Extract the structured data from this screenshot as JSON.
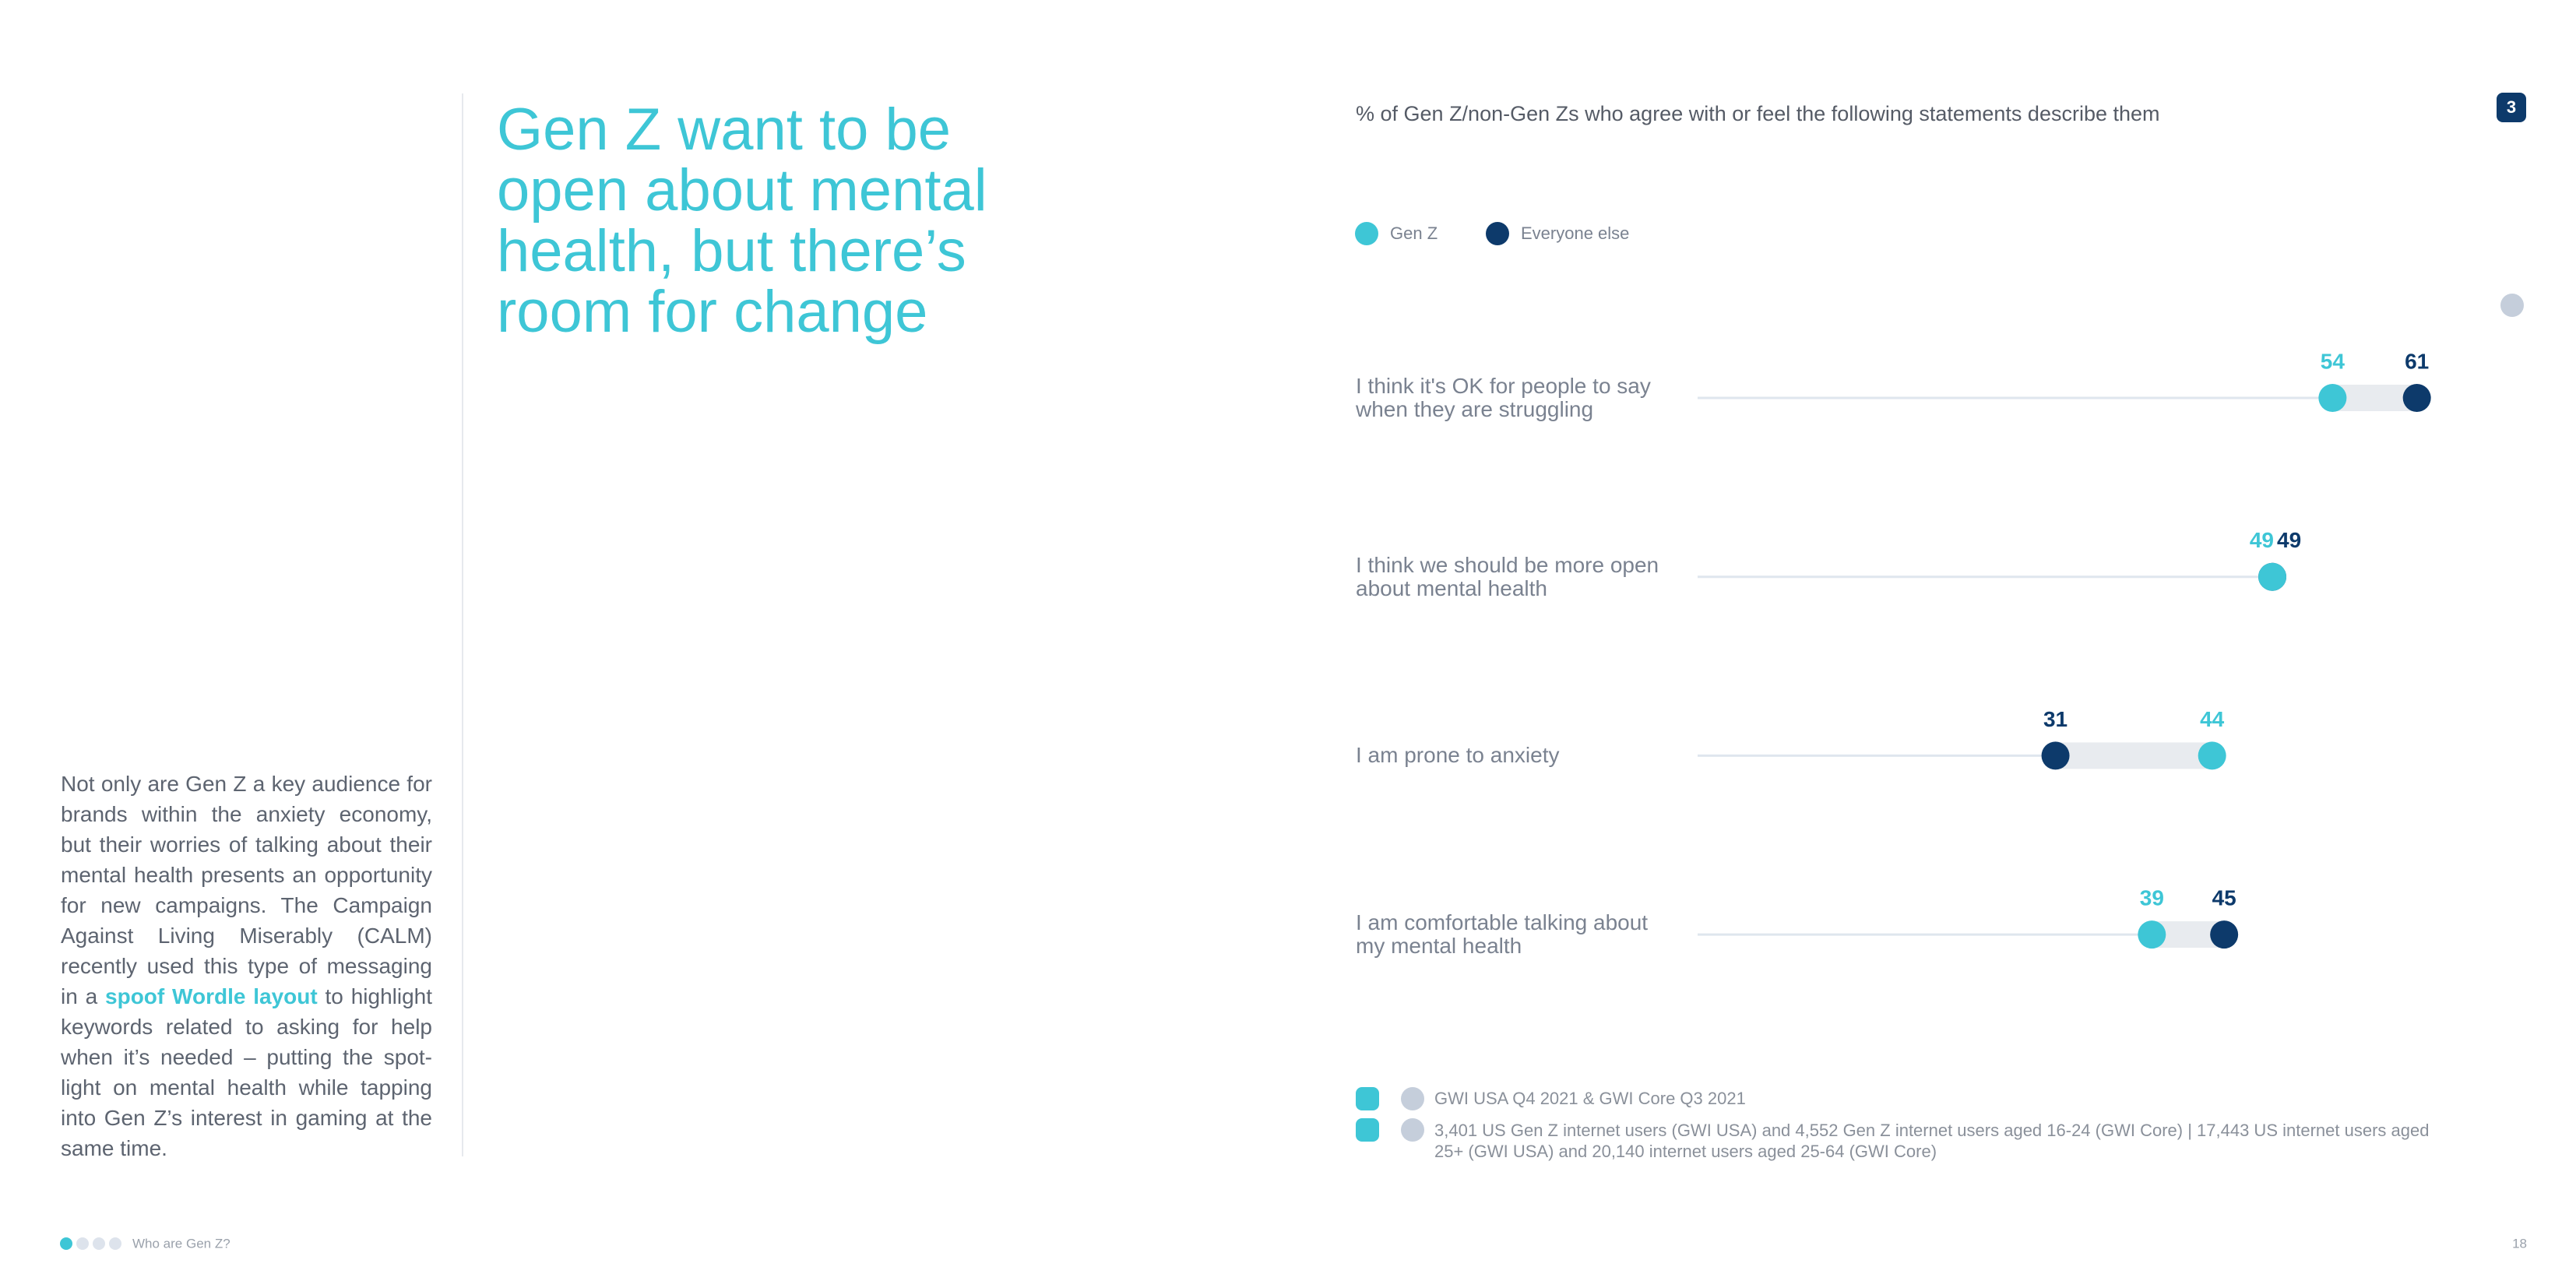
{
  "title_lines": [
    "Gen Z want to be",
    "open about mental",
    "health, but there’s",
    "room for change"
  ],
  "body": {
    "before": "Not only are Gen Z a key audience for brands within the anxiety economy, but their worries of talking about their mental health presents an opportunity for new campaigns. The Campaign Against Living Miserably (CALM) recently used this type of messaging in a",
    "link": "spoof Wordle layout",
    "after": "to highlight keywords related to asking for help when it’s needed – putting the spot-light on mental health while tapping into Gen Z’s interest in gaming at the same time."
  },
  "badge": "3",
  "chart_data": {
    "type": "dumbbell",
    "subtitle": "% of Gen Z/non-Gen Zs who agree with or feel the following statements describe them",
    "categories": [
      "I think it's OK for people to say when they are struggling",
      "I think we should be more open about mental health",
      "I am prone to anxiety",
      "I am comfortable talking about my mental health"
    ],
    "series": [
      {
        "name": "Gen Z",
        "color": "#3ec6d6",
        "values": [
          54,
          49,
          44,
          39
        ]
      },
      {
        "name": "Everyone else",
        "color": "#0d3a6b",
        "values": [
          61,
          49,
          31,
          45
        ]
      }
    ],
    "legend": "top-left"
  },
  "sources": [
    "GWI USA Q4 2021 & GWI Core Q3 2021",
    "3,401 US Gen Z internet users (GWI USA) and 4,552 Gen Z internet users aged 16-24 (GWI Core) | 17,443 US internet users aged 25+ (GWI USA) and 20,140 internet users aged 25-64 (GWI Core)"
  ],
  "footer": {
    "section": "Who are Gen Z?",
    "page": "18"
  }
}
